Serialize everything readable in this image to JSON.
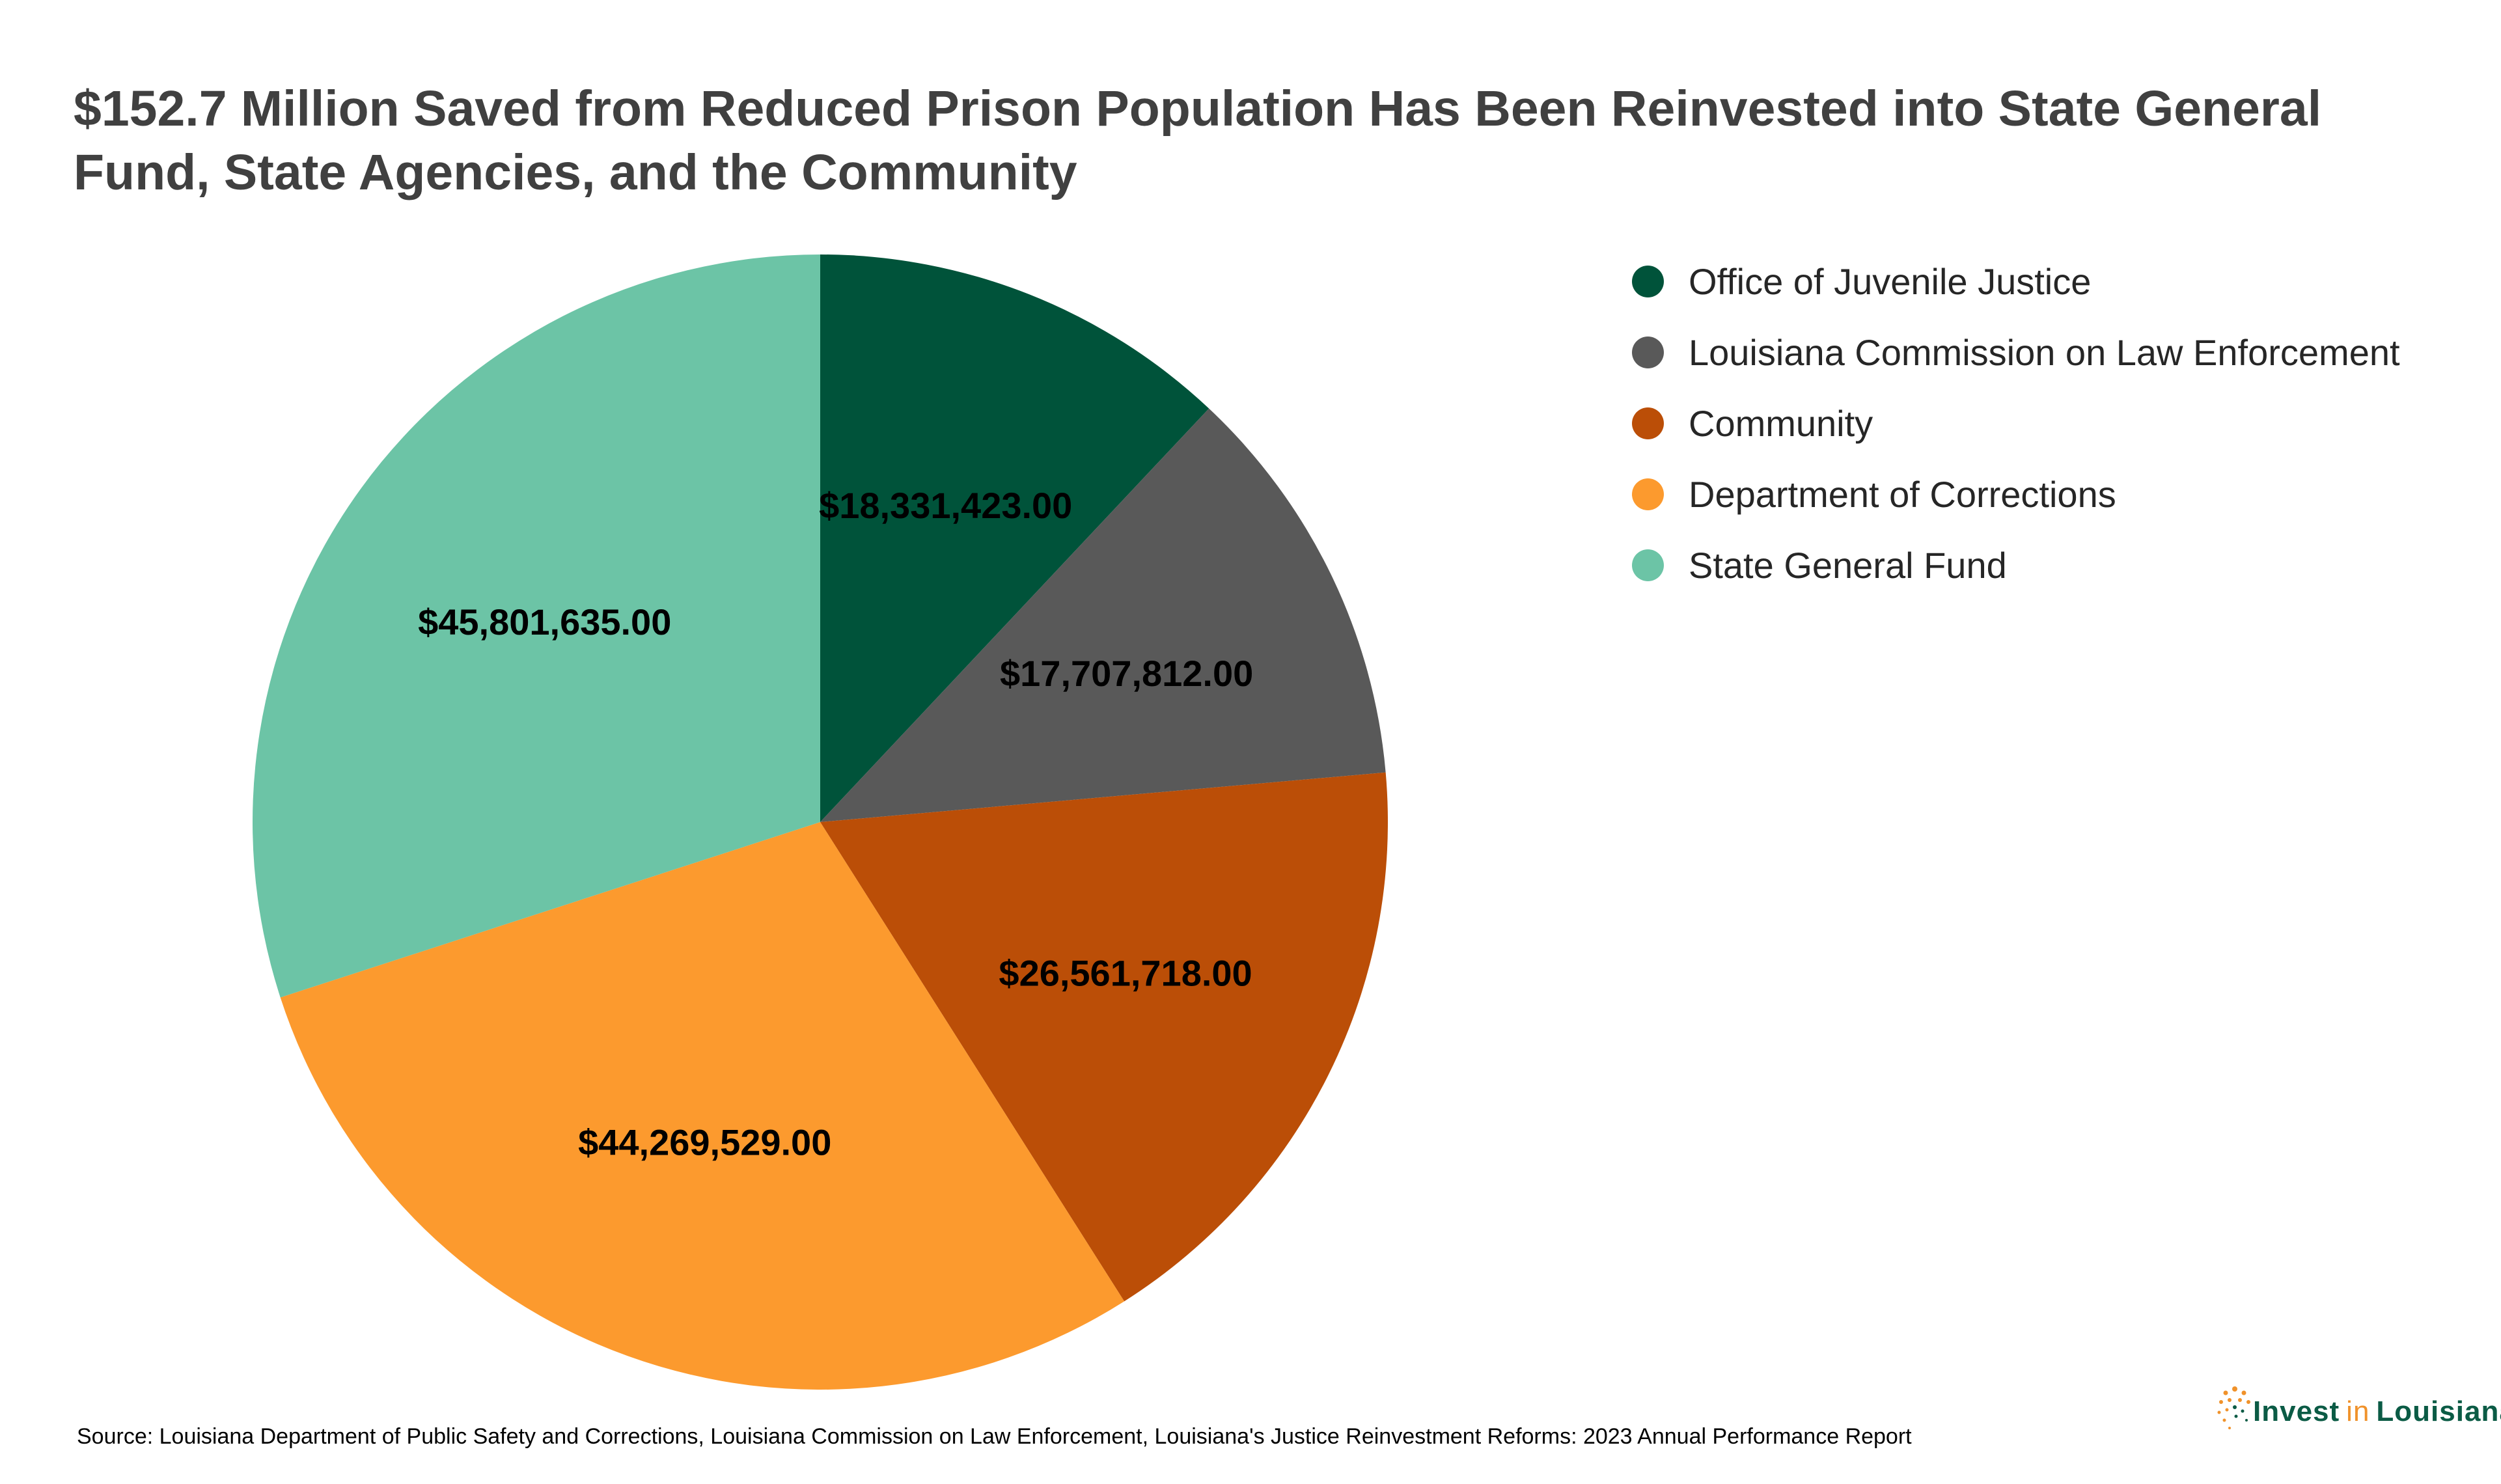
{
  "chart_data": {
    "type": "pie",
    "title": "$152.7 Million Saved from Reduced Prison Population Has Been Reinvested into State General Fund, State Agencies, and the Community",
    "legend_position": "right",
    "slices": [
      {
        "label": "Office of Juvenile Justice",
        "value": 18331423.0,
        "display": "$18,331,423.00",
        "color": "#00533a"
      },
      {
        "label": "Louisiana Commission on Law Enforcement",
        "value": 17707812.0,
        "display": "$17,707,812.00",
        "color": "#595959"
      },
      {
        "label": "Community",
        "value": 26561718.0,
        "display": "$26,561,718.00",
        "color": "#bb4e07"
      },
      {
        "label": "Department of Corrections",
        "value": 44269529.0,
        "display": "$44,269,529.00",
        "color": "#fc9a2e"
      },
      {
        "label": "State General Fund",
        "value": 45801635.0,
        "display": "$45,801,635.00",
        "color": "#6cc4a6"
      }
    ]
  },
  "source_note": "Source: Louisiana Department of Public Safety and Corrections, Louisiana Commission on Law Enforcement, Louisiana's Justice Reinvestment Reforms: 2023 Annual Performance Report",
  "logo": {
    "word_invest": "Invest",
    "word_in": "in",
    "word_louisiana": "Louisiana",
    "icon": "dotted-burst-icon",
    "colors": {
      "orange": "#f0922b",
      "green": "#0b5b45"
    }
  }
}
